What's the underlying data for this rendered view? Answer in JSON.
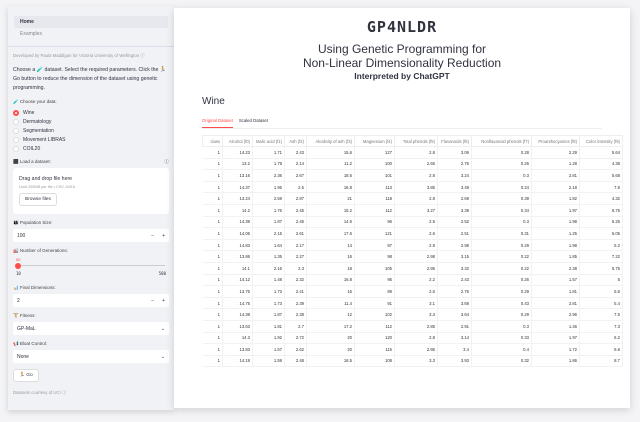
{
  "nav": {
    "home": "Home",
    "examples": "Examples"
  },
  "sidebar": {
    "developed": "Developed by Paula Maddigan for Victoria University of Wellington",
    "intro": "Choose a 🧪 dataset. Select the required parameters. Click the 🏃 Go button to reduce the dimension of the dataset using genetic programming.",
    "choose_label": "🧪 Choose your data:",
    "datasets": [
      "Wine",
      "Dermatology",
      "Segmentation",
      "Movement LIBRAS",
      "COIL20"
    ],
    "selected_dataset": "Wine",
    "load_label": "⬛ Load a dataset:",
    "drag": "Drag and drop file here",
    "limit": "Limit 200MB per file • CSV, DATA",
    "browse": "Browse files",
    "pop_label": "👪 Population Size:",
    "pop_value": "100",
    "gen_label": "🏭 Number of Generations:",
    "gen_value": "50",
    "gen_min": "10",
    "gen_max": "500",
    "dim_label": "📊 Final Dimensions:",
    "dim_value": "2",
    "fit_label": "🏋 Fitness:",
    "fit_value": "GP-MaL",
    "bloat_label": "📢 Bloat Control:",
    "bloat_value": "None",
    "go": "🏃 Go",
    "courtesy": "Datasets courtesy of UCI"
  },
  "main": {
    "title": "GP4NLDR",
    "subtitle1": "Using Genetic Programming for",
    "subtitle2": "Non-Linear Dimensionality Reduction",
    "subtitle3": "Interpreted by ChatGPT",
    "dataset_title": "Wine",
    "tabs": [
      "Original Dataset",
      "Scaled Dataset"
    ],
    "columns": [
      "class",
      "Alcohol (f0)",
      "Malic acid (f1)",
      "Ash (f2)",
      "Alcalinity of ash (f3)",
      "Magnesium (f4)",
      "Total phenols (f5)",
      "Flavanoids (f6)",
      "Nonflavanoid phenols (f7)",
      "Proanthocyanins (f8)",
      "Color intensity (f9)"
    ],
    "rows": [
      [
        "1",
        "14.23",
        "1.71",
        "2.43",
        "15.6",
        "127",
        "2.8",
        "3.06",
        "0.28",
        "2.29",
        "5.64"
      ],
      [
        "1",
        "13.2",
        "1.78",
        "2.14",
        "11.2",
        "100",
        "2.65",
        "2.76",
        "0.26",
        "1.28",
        "4.38"
      ],
      [
        "1",
        "13.16",
        "2.36",
        "2.67",
        "18.6",
        "101",
        "2.8",
        "3.24",
        "0.3",
        "2.81",
        "5.68"
      ],
      [
        "1",
        "14.37",
        "1.95",
        "2.5",
        "16.8",
        "113",
        "3.85",
        "3.49",
        "0.24",
        "2.18",
        "7.8"
      ],
      [
        "1",
        "13.24",
        "2.59",
        "2.87",
        "21",
        "118",
        "2.8",
        "2.69",
        "0.39",
        "1.82",
        "4.32"
      ],
      [
        "1",
        "14.2",
        "1.76",
        "2.45",
        "15.2",
        "112",
        "3.27",
        "3.39",
        "0.34",
        "1.97",
        "6.75"
      ],
      [
        "1",
        "14.39",
        "1.87",
        "2.45",
        "14.6",
        "96",
        "2.5",
        "2.52",
        "0.3",
        "1.98",
        "5.25"
      ],
      [
        "1",
        "14.06",
        "2.15",
        "2.61",
        "17.6",
        "121",
        "2.6",
        "2.51",
        "0.31",
        "1.25",
        "5.05"
      ],
      [
        "1",
        "14.83",
        "1.64",
        "2.17",
        "14",
        "97",
        "2.8",
        "2.98",
        "0.29",
        "1.98",
        "5.2"
      ],
      [
        "1",
        "13.86",
        "1.35",
        "2.27",
        "16",
        "98",
        "2.98",
        "3.15",
        "0.22",
        "1.85",
        "7.22"
      ],
      [
        "1",
        "14.1",
        "2.16",
        "2.3",
        "18",
        "105",
        "2.95",
        "3.32",
        "0.22",
        "2.38",
        "5.75"
      ],
      [
        "1",
        "14.12",
        "1.48",
        "2.32",
        "16.8",
        "95",
        "2.2",
        "2.43",
        "0.26",
        "1.57",
        "5"
      ],
      [
        "1",
        "13.75",
        "1.73",
        "2.41",
        "16",
        "89",
        "2.6",
        "2.76",
        "0.29",
        "1.81",
        "5.6"
      ],
      [
        "1",
        "14.75",
        "1.73",
        "2.39",
        "11.4",
        "91",
        "3.1",
        "3.69",
        "0.43",
        "2.81",
        "5.4"
      ],
      [
        "1",
        "14.38",
        "1.87",
        "2.38",
        "12",
        "102",
        "3.3",
        "3.64",
        "0.29",
        "2.96",
        "7.5"
      ],
      [
        "1",
        "13.63",
        "1.81",
        "2.7",
        "17.2",
        "112",
        "2.85",
        "2.91",
        "0.3",
        "1.46",
        "7.3"
      ],
      [
        "1",
        "14.3",
        "1.92",
        "2.72",
        "20",
        "120",
        "2.8",
        "3.14",
        "0.33",
        "1.97",
        "6.2"
      ],
      [
        "1",
        "13.83",
        "1.57",
        "2.62",
        "20",
        "115",
        "2.95",
        "3.4",
        "0.4",
        "1.72",
        "6.6"
      ],
      [
        "1",
        "14.19",
        "1.59",
        "2.48",
        "16.5",
        "108",
        "3.3",
        "3.93",
        "0.32",
        "1.86",
        "8.7"
      ]
    ]
  },
  "colors": {
    "accent": "#ff4b4b"
  }
}
